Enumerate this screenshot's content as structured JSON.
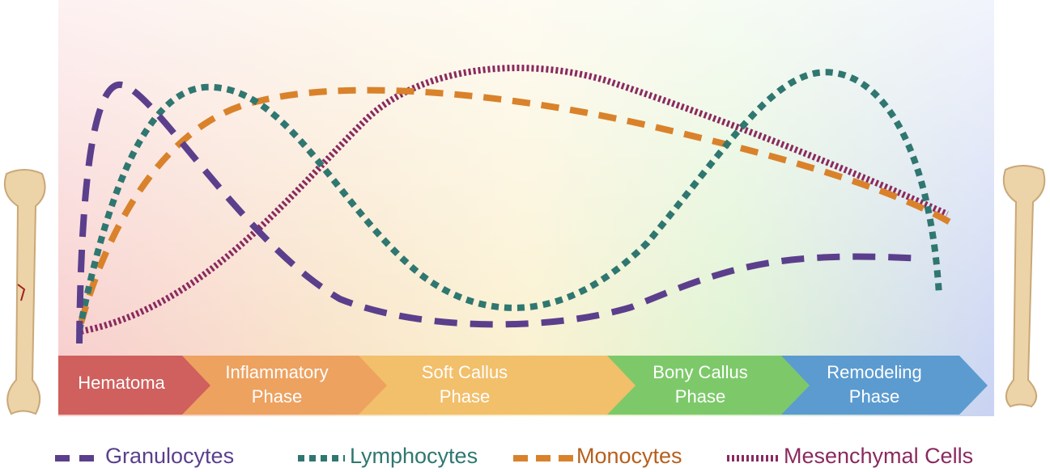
{
  "phases": [
    {
      "lines": [
        "Hematoma"
      ]
    },
    {
      "lines": [
        "Inflammatory",
        "Phase"
      ]
    },
    {
      "lines": [
        "Soft Callus",
        "Phase"
      ]
    },
    {
      "lines": [
        "Bony Callus",
        "Phase"
      ]
    },
    {
      "lines": [
        "Remodeling",
        "Phase"
      ]
    }
  ],
  "legend": [
    {
      "name": "Granulocytes"
    },
    {
      "name": "Lymphocytes"
    },
    {
      "name": "Monocytes"
    },
    {
      "name": "Mesenchymal Cells"
    }
  ]
}
